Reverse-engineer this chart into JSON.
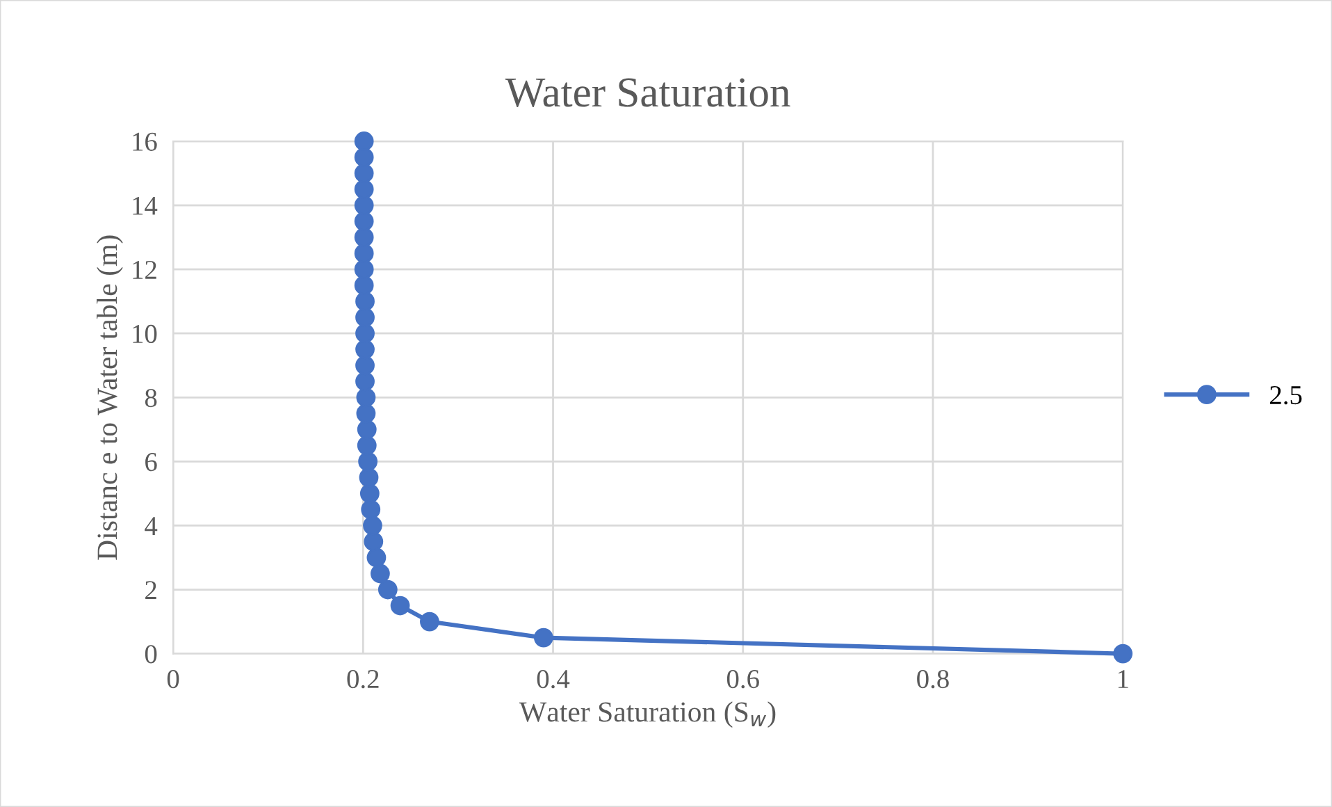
{
  "chart_data": {
    "type": "line",
    "title": "Water Saturation",
    "xlabel": "Water Saturation (S$_{w}$)",
    "ylabel": "Distanc e to Water table (m)",
    "xlim": [
      0,
      1
    ],
    "xticks": [
      0,
      0.2,
      0.4,
      0.6,
      0.8,
      1
    ],
    "ylim": [
      0,
      16
    ],
    "yticks": [
      0,
      2,
      4,
      6,
      8,
      10,
      12,
      14,
      16
    ],
    "grid": true,
    "legend": "right",
    "marker": "circle",
    "line_style": "solid",
    "series": [
      {
        "name": "2.5",
        "color": "#4472c4",
        "x": [
          1.0,
          0.39,
          0.27,
          0.239,
          0.226,
          0.218,
          0.214,
          0.211,
          0.21,
          0.208,
          0.207,
          0.206,
          0.205,
          0.204,
          0.204,
          0.203,
          0.203,
          0.202,
          0.202,
          0.202,
          0.202,
          0.202,
          0.202,
          0.201,
          0.201,
          0.201,
          0.201,
          0.201,
          0.201,
          0.201,
          0.201,
          0.201,
          0.201
        ],
        "values": [
          0,
          0.5,
          1,
          1.5,
          2,
          2.5,
          3,
          3.5,
          4,
          4.5,
          5,
          5.5,
          6,
          6.5,
          7,
          7.5,
          8,
          8.5,
          9,
          9.5,
          10,
          10.5,
          11,
          11.5,
          12,
          12.5,
          13,
          13.5,
          14,
          14.5,
          15,
          15.5,
          16
        ]
      }
    ]
  }
}
